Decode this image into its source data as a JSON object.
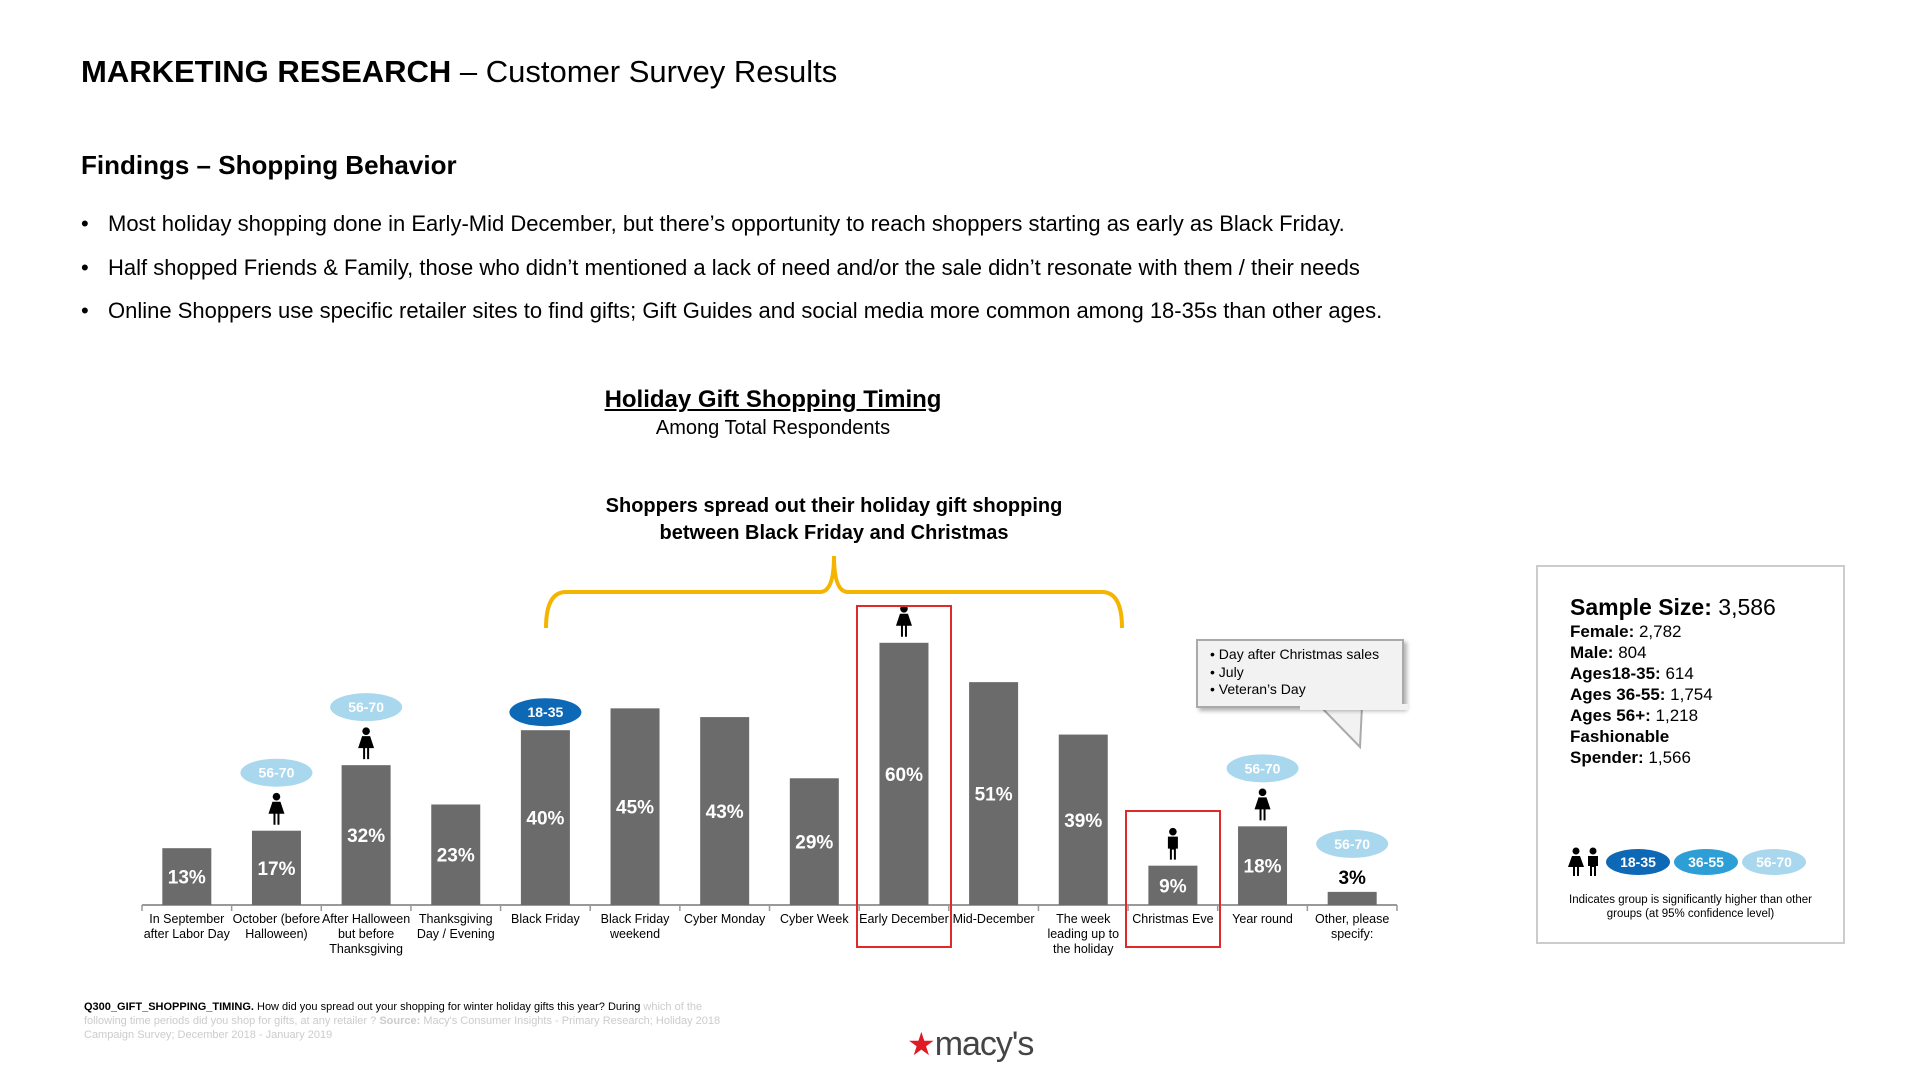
{
  "header": {
    "title_bold": "MARKETING RESEARCH",
    "title_rest": " – Customer Survey Results"
  },
  "findings": {
    "heading": "Findings – Shopping Behavior",
    "bullets": [
      "Most holiday shopping done in Early-Mid December, but there’s opportunity to reach shoppers starting as early as Black Friday.",
      "Half shopped Friends & Family, those who didn’t mentioned a lack of need and/or the sale didn’t resonate with them / their needs",
      "Online Shoppers use specific retailer sites to find gifts; Gift Guides and social media more common among 18-35s than other ages."
    ]
  },
  "chart_data": {
    "type": "bar",
    "title": "Holiday Gift Shopping Timing",
    "subtitle": "Among Total Respondents",
    "annotation": [
      "Shoppers spread out their holiday gift shopping",
      "between Black Friday and Christmas"
    ],
    "categories": [
      "In September after Labor Day",
      "October (before Halloween)",
      "After Halloween but before Thanksgiving",
      "Thanksgiving Day / Evening",
      "Black Friday",
      "Black Friday weekend",
      "Cyber Monday",
      "Cyber Week",
      "Early December",
      "Mid-December",
      "The week leading up to the holiday",
      "Christmas Eve",
      "Year round",
      "Other, please specify:"
    ],
    "values": [
      13,
      17,
      32,
      23,
      40,
      45,
      43,
      29,
      60,
      51,
      39,
      9,
      18,
      3
    ],
    "value_labels": [
      "13%",
      "17%",
      "32%",
      "23%",
      "40%",
      "45%",
      "43%",
      "29%",
      "60%",
      "51%",
      "39%",
      "9%",
      "18%",
      "3%"
    ],
    "ylim": [
      0,
      100
    ],
    "highlighted": [
      "Early December",
      "Christmas Eve"
    ],
    "bracket_span": [
      "Black Friday",
      "The week leading up to the holiday"
    ],
    "markers": [
      {},
      {
        "age": "56-70",
        "gender": "female"
      },
      {
        "age": "56-70",
        "gender": "female"
      },
      {},
      {
        "age": "18-35"
      },
      {},
      {},
      {},
      {
        "gender": "female"
      },
      {},
      {},
      {
        "gender": "male"
      },
      {
        "age": "56-70",
        "gender": "female"
      },
      {
        "age": "56-70"
      }
    ],
    "callout": [
      "Day after Christmas sales",
      "July",
      "Veteran’s Day"
    ],
    "bar_color": "#6b6b6b",
    "age_colors": {
      "18-35": "#0d68b5",
      "36-55": "#2d9ed6",
      "56-70": "#a8d7ee"
    }
  },
  "sample": {
    "title_label": "Sample Size:",
    "title_value": " 3,586",
    "rows": [
      {
        "label": "Female:",
        "value": " 2,782"
      },
      {
        "label": "Male:",
        "value": " 804"
      },
      {
        "label": "Ages18-35:",
        "value": " 614"
      },
      {
        "label": "Ages 36-55:",
        "value": " 1,754"
      },
      {
        "label": "Ages 56+:",
        "value": " 1,218"
      },
      {
        "label": "Fashionable",
        "value": ""
      },
      {
        "label": "Spender:",
        "value": " 1,566"
      }
    ],
    "legend_pills": [
      "18-35",
      "36-55",
      "56-70"
    ],
    "legend_note": "Indicates group is significantly higher than other groups (at 95% confidence level)"
  },
  "footnote": {
    "code": "Q300_GIFT_SHOPPING_TIMING.",
    "question_a": " How did you spread out your shopping for winter holiday gifts this year? During",
    "question_b": " which of the following time periods did you shop for gifts, at any retailer ?",
    "source_label": " Source:",
    "source": " Macy's Consumer Insights - Primary Research; Holiday 2018 Campaign Survey; December 2018 - January 2019"
  },
  "logo": {
    "text": "macy's"
  }
}
